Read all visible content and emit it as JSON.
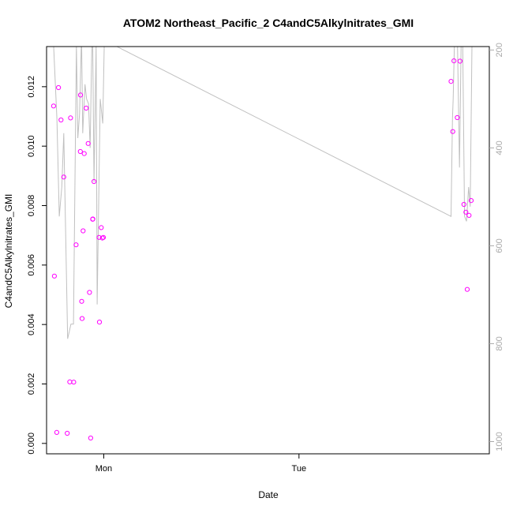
{
  "chart_data": {
    "type": "scatter",
    "title": "ATOM2 Northeast_Pacific_2 C4andC5Alkylnitrates_GMI",
    "xlabel": "Date",
    "ylabel": "C4andC5Alkylnitrates_GMI",
    "x_ticks": [
      {
        "value": 0,
        "label": "Mon"
      },
      {
        "value": 1,
        "label": "Tue"
      }
    ],
    "xlim": [
      -0.293,
      1.975
    ],
    "ylim": [
      -0.00035,
      0.01335
    ],
    "y_ticks": [
      0.0,
      0.002,
      0.004,
      0.006,
      0.008,
      0.01,
      0.012
    ],
    "y_tick_labels": [
      "0.000",
      "0.002",
      "0.004",
      "0.006",
      "0.008",
      "0.010",
      "0.012"
    ],
    "y2_ticks": [
      200,
      400,
      600,
      800,
      1000
    ],
    "y2_tick_labels": [
      "200",
      "400",
      "600",
      "800",
      "1000"
    ],
    "y2lim": [
      1025,
      193
    ],
    "grid": false,
    "legend": "none",
    "colors": {
      "points": "#ff00ff",
      "line": "#c0c0c0",
      "right_axis": "#aaaaaa"
    },
    "series": [
      {
        "kind": "points",
        "x": [
          -0.257,
          -0.253,
          -0.241,
          -0.232,
          -0.219,
          -0.205,
          -0.187,
          -0.174,
          -0.17,
          -0.154,
          -0.142,
          -0.119,
          -0.12,
          -0.113,
          -0.111,
          -0.106,
          -0.1,
          -0.09,
          -0.08,
          -0.073,
          -0.067,
          -0.057,
          -0.056,
          -0.05,
          -0.024,
          -0.022,
          -0.013,
          -0.007,
          -0.002,
          1.779,
          1.788,
          1.794,
          1.811,
          1.825,
          1.845,
          1.855,
          1.862,
          1.871,
          1.882
        ],
        "y": [
          0.01135,
          0.00563,
          0.00037,
          0.01197,
          0.01088,
          0.00896,
          0.00034,
          0.00207,
          0.01095,
          0.00206,
          0.00668,
          0.01172,
          0.00982,
          0.00478,
          0.0042,
          0.00715,
          0.00975,
          0.01128,
          0.01009,
          0.00508,
          0.00018,
          0.00754,
          0.00755,
          0.00881,
          0.00693,
          0.00408,
          0.00726,
          0.00691,
          0.00693,
          0.01218,
          0.01049,
          0.01287,
          0.01096,
          0.01286,
          0.00804,
          0.00778,
          0.00518,
          0.00767,
          0.00817
        ]
      },
      {
        "kind": "line",
        "axis": "right",
        "x": [
          -0.257,
          -0.24,
          -0.228,
          -0.215,
          -0.205,
          -0.185,
          -0.168,
          -0.155,
          -0.14,
          -0.133,
          -0.124,
          -0.114,
          -0.108,
          -0.096,
          -0.088,
          -0.078,
          -0.07,
          -0.058,
          -0.05,
          -0.039,
          -0.034,
          -0.018,
          -0.005,
          0.003,
          1.779,
          1.786,
          1.79,
          1.8,
          1.812,
          1.822,
          1.835,
          1.848,
          1.858,
          1.869,
          1.877,
          1.886,
          1.89
        ],
        "y": [
          190,
          340,
          540,
          480,
          370,
          790,
          760,
          760,
          190,
          380,
          330,
          170,
          370,
          270,
          300,
          310,
          400,
          120,
          470,
          190,
          720,
          300,
          350,
          180,
          540,
          340,
          300,
          120,
          190,
          440,
          50,
          540,
          550,
          480,
          520,
          190,
          150
        ]
      }
    ]
  }
}
